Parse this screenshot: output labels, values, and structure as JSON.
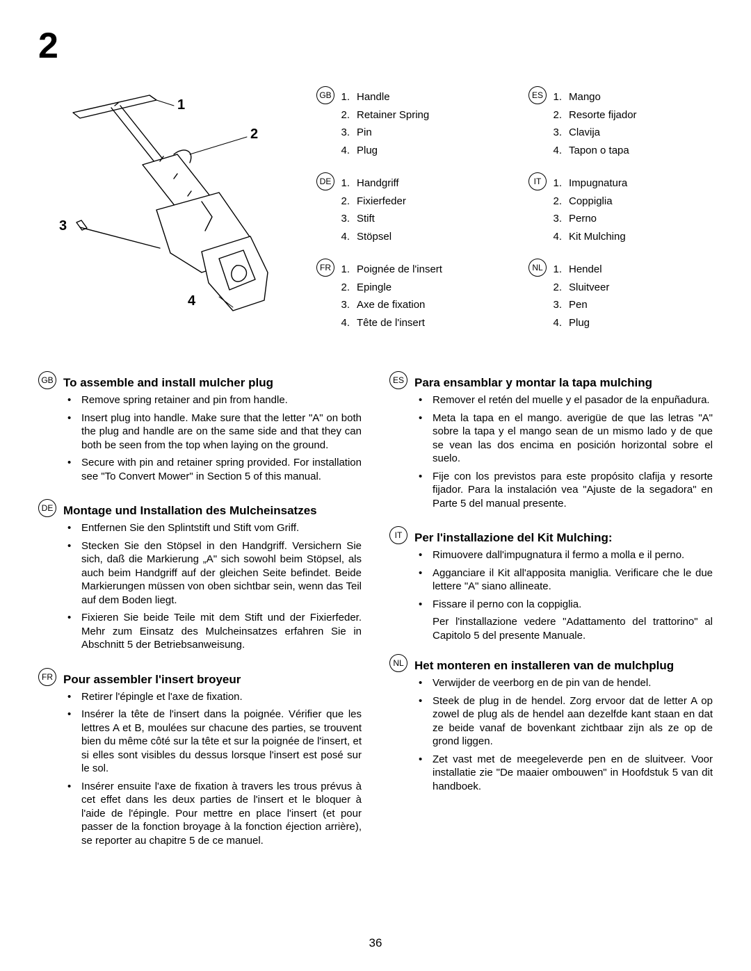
{
  "section_number": "2",
  "page_number": "36",
  "callouts": {
    "c1": "1",
    "c2": "2",
    "c3": "3",
    "c4": "4"
  },
  "diagram": {
    "stroke": "#000000",
    "stroke_width": 1.4,
    "fill": "#ffffff"
  },
  "parts": {
    "left_col": [
      {
        "lang": "GB",
        "items": [
          "Handle",
          "Retainer Spring",
          "Pin",
          "Plug"
        ]
      },
      {
        "lang": "DE",
        "items": [
          "Handgriff",
          "Fixierfeder",
          "Stift",
          "Stöpsel"
        ]
      },
      {
        "lang": "FR",
        "items": [
          "Poignée de l'insert",
          "Epingle",
          "Axe de fixation",
          "Tête de l'insert"
        ]
      }
    ],
    "right_col": [
      {
        "lang": "ES",
        "items": [
          "Mango",
          "Resorte fijador",
          "Clavija",
          "Tapon o tapa"
        ]
      },
      {
        "lang": "IT",
        "items": [
          "Impugnatura",
          "Coppiglia",
          "Perno",
          "Kit Mulching"
        ]
      },
      {
        "lang": "NL",
        "items": [
          "Hendel",
          "Sluitveer",
          "Pen",
          "Plug"
        ]
      }
    ]
  },
  "instructions": {
    "left": [
      {
        "lang": "GB",
        "title": "To assemble and install mulcher plug",
        "bullets": [
          "Remove spring retainer  and pin from handle.",
          "Insert plug into handle. Make sure that the letter \"A\" on both the plug and handle are on the same side and that they can both be seen from the top when laying on the ground.",
          "Secure with pin and retainer spring provided. For installation see \"To Convert Mower\" in Section 5 of this manual."
        ]
      },
      {
        "lang": "DE",
        "title": "Montage und Installation des Mulcheinsatzes",
        "bullets": [
          "Entfernen Sie den Splintstift und Stift vom Griff.",
          "Stecken Sie den Stöpsel in den Handgriff. Versichern Sie sich, daß die Markierung „A\" sich sowohl beim Stöpsel, als auch beim Handgriff auf der gleichen Seite befindet. Beide Markierungen müssen von oben sichtbar sein, wenn das Teil auf dem Boden liegt.",
          "Fixieren Sie beide Teile mit dem Stift und der Fixierfeder. Mehr zum Einsatz des Mulcheinsatzes erfahren Sie in Abschnitt 5 der Betriebsanweisung."
        ]
      },
      {
        "lang": "FR",
        "title": "Pour assembler l'insert broyeur",
        "bullets": [
          "Retirer l'épingle et l'axe de fixation.",
          "Insérer la tête de l'insert dans la poignée. Vérifier que les lettres A et B, moulées sur chacune des parties, se trouvent bien du même côté sur la tête et sur la poignée de l'insert, et si elles sont visibles du dessus lorsque l'insert est posé sur le sol.",
          "Insérer ensuite l'axe de fixation à travers les trous prévus à cet effet dans les deux parties de l'insert et le bloquer à l'aide de l'épingle. Pour mettre en place l'insert (et pour passer de la fonction broyage à la fonction éjection arrière), se reporter au chapitre 5 de ce manuel."
        ]
      }
    ],
    "right": [
      {
        "lang": "ES",
        "title": "Para ensamblar y montar la tapa mulching",
        "bullets": [
          "Remover el retén del muelle y el pasador de la enpuñadura.",
          "Meta la tapa en el mango. averigüe de que las letras \"A\" sobre la tapa y el mango sean de un mismo lado y de que se vean las dos encima en posición horizontal sobre el suelo.",
          "Fije con los previstos para este propósito clafija y resorte fijador. Para la instalación vea \"Ajuste de la segadora\" en Parte 5 del manual presente."
        ]
      },
      {
        "lang": "IT",
        "title": "Per l'installazione del Kit Mulching:",
        "bullets": [
          "Rimuovere dall'impugnatura il fermo a molla e il perno.",
          "Agganciare il Kit all'apposita maniglia. Verificare che le due lettere \"A\" siano allineate.",
          "Fissare il perno con la coppiglia."
        ],
        "extra": "Per l'installazione vedere \"Adattamento del trattorino\" al Capitolo 5 del presente Manuale."
      },
      {
        "lang": "NL",
        "title": "Het monteren en installeren van de mulchplug",
        "bullets": [
          "Verwijder de veerborg en de pin van de hendel.",
          "Steek de plug in de hendel. Zorg ervoor dat de letter A op zowel de plug als de hendel aan dezelfde kant staan en dat ze beide vanaf de bovenkant zichtbaar zijn als ze op de grond liggen.",
          "Zet vast met de meegeleverde pen en de sluitveer. Voor installatie zie \"De maaier ombouwen\" in Hoofdstuk 5 van dit handboek."
        ]
      }
    ]
  }
}
